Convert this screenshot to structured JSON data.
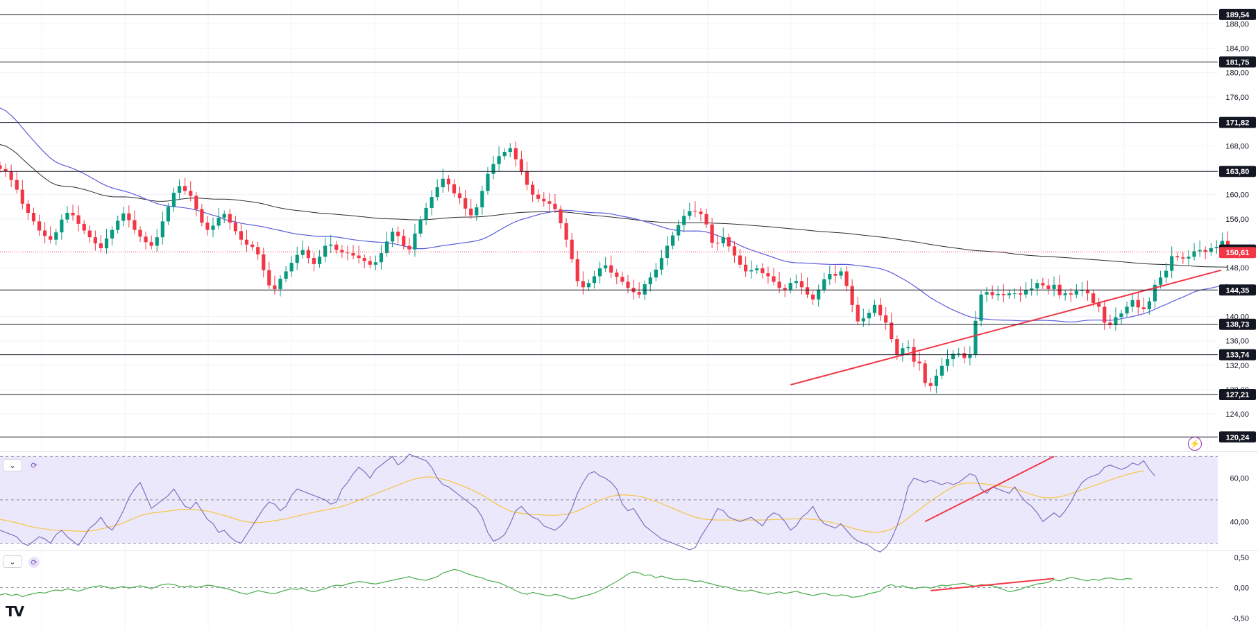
{
  "logo": "TV",
  "colors": {
    "up": "#089981",
    "down": "#f23645",
    "ma50": "#5b5bdb",
    "ma200": "#2a2a2a",
    "trend": "#f23645",
    "rsi": "#7e6fbf",
    "rsi_ma": "#f6c443",
    "rsi_band": "#ece8fb",
    "cmf": "#4caf50",
    "price_tag": "#f23645"
  },
  "icons": {
    "collapse_rsi": "chevron-down-icon",
    "sync_rsi": "sync-icon",
    "collapse_cmf": "chevron-down-icon",
    "sync_cmf": "sync-icon",
    "alert": "lightning-icon"
  },
  "chart_data": [
    {
      "type": "candlestick",
      "pane": "price",
      "y_axis_ticks": [
        "188,00",
        "184,00",
        "180,00",
        "176,00",
        "168,00",
        "160,00",
        "156,00",
        "148,00",
        "140,00",
        "136,00",
        "132,00",
        "128,00",
        "124,00"
      ],
      "ylim": [
        118,
        191
      ],
      "grid": true,
      "levels": [
        {
          "value": 189.54,
          "label": "189,54"
        },
        {
          "value": 181.75,
          "label": "181,75"
        },
        {
          "value": 171.82,
          "label": "171,82"
        },
        {
          "value": 163.8,
          "label": "163,80"
        },
        {
          "value": 144.35,
          "label": "144,35"
        },
        {
          "value": 138.73,
          "label": "138,73"
        },
        {
          "value": 133.74,
          "label": "133,74"
        },
        {
          "value": 127.21,
          "label": "127,21"
        },
        {
          "value": 120.24,
          "label": "120,24"
        }
      ],
      "ma200_tag": {
        "value": 150.67,
        "label": "150,67"
      },
      "last_price": {
        "value": 150.61,
        "label": "150,61"
      },
      "closes": [
        164.2,
        163.8,
        162.4,
        160.8,
        158.5,
        157.0,
        155.6,
        154.1,
        153.2,
        152.6,
        153.8,
        155.9,
        157.0,
        156.6,
        155.2,
        154.1,
        153.0,
        152.0,
        151.2,
        152.8,
        154.2,
        155.7,
        156.9,
        155.8,
        154.2,
        153.1,
        152.2,
        151.6,
        153.0,
        155.6,
        158.0,
        160.3,
        161.4,
        160.6,
        159.8,
        157.6,
        155.4,
        154.2,
        154.9,
        156.2,
        156.8,
        155.4,
        154.0,
        152.6,
        151.8,
        151.4,
        150.2,
        147.6,
        145.1,
        144.5,
        146.2,
        147.4,
        148.8,
        150.1,
        150.9,
        149.6,
        148.6,
        149.8,
        151.6,
        151.8,
        150.9,
        150.5,
        150.4,
        150.0,
        149.6,
        149.1,
        148.5,
        148.9,
        150.4,
        152.3,
        153.9,
        153.2,
        151.6,
        151.0,
        153.6,
        155.9,
        157.8,
        159.6,
        161.2,
        162.6,
        161.7,
        160.2,
        159.4,
        157.7,
        156.6,
        157.9,
        160.6,
        163.4,
        165.0,
        166.3,
        167.0,
        167.6,
        165.8,
        163.8,
        161.6,
        160.0,
        159.3,
        158.9,
        158.5,
        157.6,
        155.3,
        152.6,
        149.4,
        145.8,
        144.8,
        145.5,
        146.6,
        147.9,
        148.4,
        147.2,
        146.5,
        145.7,
        144.7,
        144.0,
        143.6,
        145.3,
        146.4,
        147.7,
        149.6,
        151.6,
        153.3,
        155.0,
        156.5,
        157.3,
        157.2,
        156.8,
        155.1,
        152.1,
        152.0,
        153.0,
        151.5,
        150.0,
        148.5,
        147.4,
        147.6,
        147.9,
        147.1,
        146.6,
        145.7,
        144.7,
        144.4,
        145.5,
        145.8,
        144.8,
        143.6,
        142.8,
        144.4,
        146.1,
        147.0,
        146.7,
        147.4,
        145.0,
        141.9,
        139.2,
        139.7,
        140.6,
        141.9,
        140.2,
        139.0,
        136.3,
        133.8,
        134.8,
        135.0,
        132.6,
        132.3,
        129.1,
        128.6,
        130.3,
        131.9,
        133.0,
        133.9,
        134.0,
        133.2,
        133.8,
        139.3,
        143.6,
        144.0,
        143.5,
        143.7,
        143.5,
        143.8,
        143.8,
        143.6,
        144.3,
        144.6,
        145.5,
        145.1,
        144.5,
        145.2,
        143.5,
        143.8,
        143.6,
        144.2,
        144.3,
        143.8,
        142.2,
        141.6,
        139.0,
        138.6,
        139.9,
        140.5,
        141.6,
        142.7,
        141.5,
        141.2,
        142.5,
        145.2,
        146.4,
        147.5,
        149.9,
        149.7,
        149.5,
        149.8,
        150.7,
        150.9,
        150.6,
        151.2,
        151.4,
        152.4,
        151.1
      ]
    },
    {
      "type": "line",
      "pane": "rsi",
      "y_axis_ticks": [
        "60,00",
        "40,00"
      ],
      "ylim": [
        27,
        72
      ],
      "bands": {
        "upper": 70,
        "middle": 50,
        "lower": 30
      },
      "series_values": [
        36,
        35,
        34,
        33,
        30,
        29,
        31,
        33,
        32,
        30,
        34,
        36,
        33,
        31,
        29,
        33,
        37,
        39,
        42,
        38,
        36,
        40,
        45,
        51,
        55,
        58,
        52,
        46,
        48,
        50,
        52,
        55,
        51,
        47,
        46,
        49,
        45,
        41,
        39,
        35,
        36,
        33,
        31,
        30,
        34,
        38,
        42,
        46,
        49,
        48,
        45,
        47,
        52,
        55,
        54,
        53,
        52,
        51,
        50,
        48,
        49,
        55,
        58,
        62,
        65,
        63,
        60,
        64,
        66,
        68,
        70,
        66,
        68,
        71,
        70,
        69,
        68,
        65,
        60,
        57,
        56,
        54,
        52,
        50,
        48,
        46,
        42,
        35,
        31,
        32,
        34,
        39,
        45,
        47,
        44,
        42,
        41,
        38,
        37,
        36,
        38,
        41,
        46,
        53,
        58,
        62,
        63,
        61,
        60,
        58,
        55,
        48,
        45,
        46,
        42,
        38,
        36,
        34,
        32,
        31,
        30,
        29,
        28,
        27,
        28,
        33,
        37,
        41,
        46,
        45,
        42,
        41,
        40,
        41,
        42,
        40,
        38,
        42,
        44,
        43,
        40,
        36,
        38,
        42,
        44,
        47,
        42,
        39,
        38,
        37,
        39,
        36,
        33,
        31,
        30,
        29,
        27,
        26,
        28,
        32,
        38,
        46,
        56,
        60,
        59,
        58,
        59,
        58,
        57,
        58,
        57,
        58,
        60,
        62,
        61,
        55,
        53,
        56,
        55,
        54,
        53,
        56,
        52,
        49,
        47,
        44,
        40,
        42,
        44,
        42,
        45,
        49,
        54,
        58,
        60,
        61,
        62,
        65,
        66,
        65,
        64,
        65,
        67,
        66,
        68,
        64,
        61
      ],
      "ma_values": [
        41,
        40.5,
        40,
        39.4,
        38.8,
        38,
        37.4,
        37,
        36.6,
        36.2,
        36,
        35.9,
        35.8,
        35.7,
        35.6,
        35.5,
        35.6,
        36,
        36.6,
        37.2,
        37.8,
        38.5,
        39.4,
        40.5,
        41.6,
        42.7,
        43.4,
        43.9,
        44.2,
        44.5,
        44.8,
        45.2,
        45.5,
        45.6,
        45.5,
        45.4,
        45.2,
        44.8,
        44.2,
        43.5,
        42.8,
        42,
        41.2,
        40.4,
        39.9,
        39.6,
        39.5,
        39.7,
        40,
        40.4,
        40.8,
        41.3,
        41.9,
        42.5,
        43.1,
        43.7,
        44.3,
        44.8,
        45.3,
        45.8,
        46.3,
        47,
        47.8,
        48.8,
        49.8,
        50.8,
        51.8,
        52.8,
        53.8,
        54.8,
        55.8,
        56.8,
        57.8,
        58.8,
        59.6,
        60.2,
        60.5,
        60.5,
        60.1,
        59.5,
        58.8,
        57.9,
        56.9,
        55.9,
        54.8,
        53.6,
        52.2,
        50.6,
        49,
        47.4,
        46,
        44.9,
        44.2,
        43.8,
        43.5,
        43.3,
        43.2,
        43,
        42.9,
        42.9,
        43.1,
        43.4,
        44,
        44.9,
        46,
        47.3,
        48.6,
        49.8,
        50.8,
        51.6,
        52.1,
        52.3,
        52.2,
        52,
        51.6,
        51,
        50.2,
        49.3,
        48.3,
        47.2,
        46.1,
        45,
        43.9,
        42.9,
        42,
        41.4,
        41,
        40.8,
        40.7,
        40.7,
        40.7,
        40.7,
        40.7,
        40.7,
        40.7,
        40.7,
        40.7,
        40.8,
        40.9,
        41,
        41.1,
        41.2,
        41.3,
        41.3,
        41.2,
        41,
        40.7,
        40.3,
        39.8,
        39.2,
        38.5,
        37.8,
        37,
        36.3,
        35.7,
        35.3,
        35.1,
        35.2,
        35.7,
        36.6,
        38,
        39.7,
        41.6,
        43.6,
        45.6,
        47.5,
        49.4,
        51.2,
        52.9,
        54.5,
        55.9,
        57,
        57.6,
        57.8,
        57.7,
        57.5,
        57.2,
        56.9,
        56.6,
        56.2,
        55.7,
        55.1,
        54.3,
        53.4,
        52.5,
        51.7,
        51.1,
        50.9,
        51,
        51.4,
        52,
        52.8,
        53.7,
        54.6,
        55.5,
        56.4,
        57.3,
        58.2,
        59.1,
        60,
        60.8,
        61.6,
        62.3,
        62.9,
        63.3
      ]
    },
    {
      "type": "line",
      "pane": "cmf",
      "y_axis_ticks": [
        "0,50",
        "0,00",
        "-0,50"
      ],
      "ylim": [
        -0.6,
        0.6
      ],
      "zero_line": true,
      "series_values": [
        -0.12,
        -0.1,
        -0.13,
        -0.11,
        -0.15,
        -0.12,
        -0.1,
        -0.08,
        -0.09,
        -0.06,
        -0.04,
        -0.05,
        -0.02,
        -0.04,
        -0.06,
        -0.03,
        0.0,
        0.02,
        0.03,
        0.01,
        -0.02,
        0.0,
        0.02,
        -0.01,
        0.01,
        0.03,
        0.01,
        -0.02,
        0.02,
        0.05,
        0.06,
        0.05,
        0.02,
        0.01,
        0.03,
        0.0,
        0.02,
        0.04,
        0.03,
        0.01,
        -0.01,
        -0.03,
        -0.06,
        -0.09,
        -0.11,
        -0.08,
        -0.05,
        -0.07,
        -0.09,
        -0.1,
        -0.07,
        -0.04,
        -0.02,
        -0.03,
        -0.01,
        -0.05,
        -0.07,
        -0.04,
        -0.02,
        0.02,
        0.04,
        0.03,
        0.06,
        0.08,
        0.1,
        0.09,
        0.07,
        0.06,
        0.08,
        0.1,
        0.12,
        0.14,
        0.16,
        0.18,
        0.15,
        0.13,
        0.12,
        0.15,
        0.18,
        0.24,
        0.27,
        0.3,
        0.28,
        0.24,
        0.21,
        0.18,
        0.16,
        0.12,
        0.1,
        0.08,
        0.04,
        0.0,
        -0.05,
        -0.09,
        -0.11,
        -0.08,
        -0.1,
        -0.12,
        -0.14,
        -0.11,
        -0.13,
        -0.16,
        -0.19,
        -0.17,
        -0.14,
        -0.12,
        -0.09,
        -0.05,
        0.0,
        0.05,
        0.1,
        0.16,
        0.22,
        0.26,
        0.24,
        0.2,
        0.21,
        0.16,
        0.19,
        0.16,
        0.14,
        0.13,
        0.14,
        0.12,
        0.1,
        0.11,
        0.08,
        0.06,
        0.03,
        0.02,
        0.0,
        -0.03,
        -0.05,
        -0.06,
        -0.04,
        -0.07,
        -0.09,
        -0.11,
        -0.09,
        -0.07,
        -0.1,
        -0.08,
        -0.06,
        -0.09,
        -0.11,
        -0.13,
        -0.11,
        -0.09,
        -0.12,
        -0.14,
        -0.12,
        -0.13,
        -0.16,
        -0.15,
        -0.13,
        -0.1,
        -0.08,
        -0.06,
        0.02,
        0.05,
        0.01,
        0.03,
        0.0,
        -0.02,
        0.0,
        0.01,
        -0.01,
        0.02,
        0.04,
        0.03,
        0.05,
        0.06,
        0.07,
        0.04,
        0.02,
        0.05,
        0.04,
        0.03,
        0.0,
        -0.03,
        -0.07,
        -0.05,
        -0.03,
        0.01,
        0.03,
        0.06,
        0.07,
        0.09,
        0.13,
        0.11,
        0.14,
        0.17,
        0.15,
        0.13,
        0.11,
        0.14,
        0.12,
        0.15,
        0.16,
        0.14,
        0.13,
        0.15,
        0.14
      ]
    }
  ]
}
